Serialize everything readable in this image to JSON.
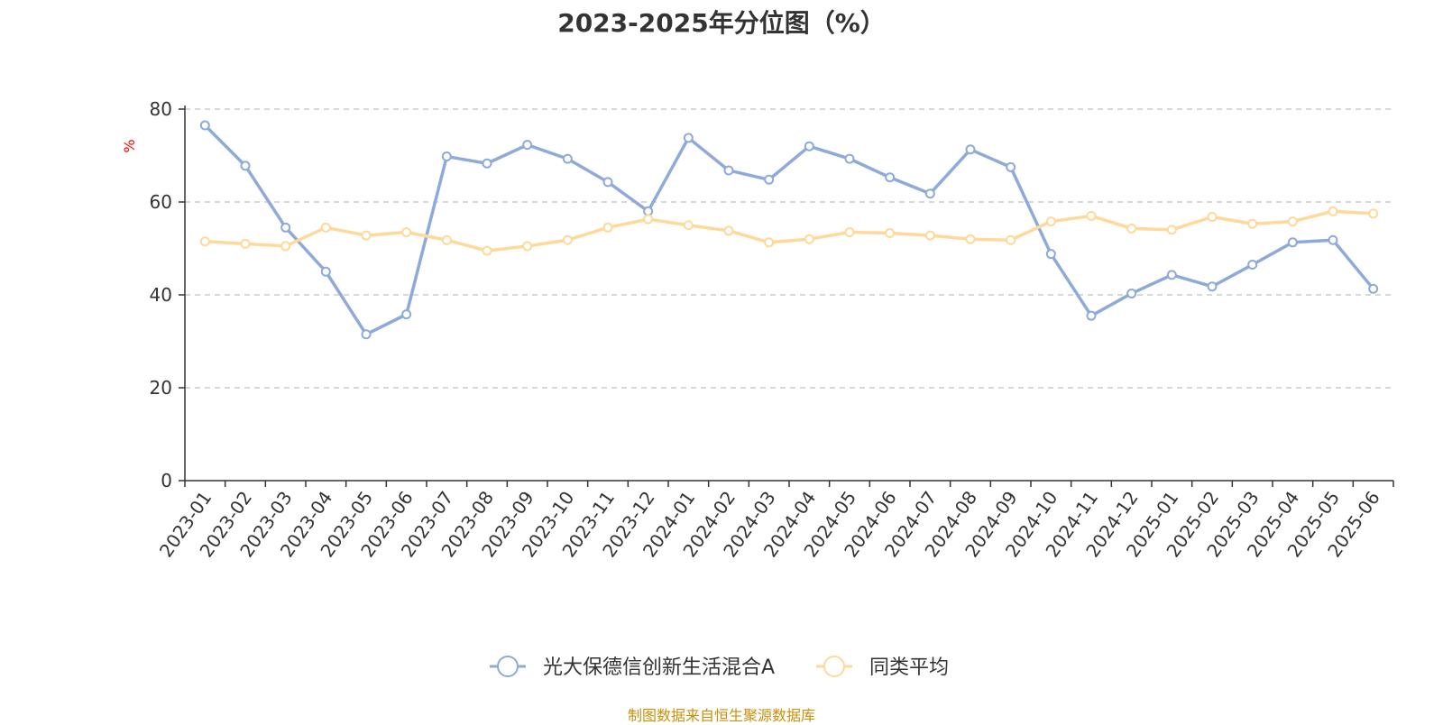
{
  "chart_data": {
    "type": "line",
    "title": "2023-2025年分位图（%）",
    "ylabel": "%",
    "ylim": [
      0,
      80
    ],
    "yticks": [
      0,
      20,
      40,
      60,
      80
    ],
    "grid": "horizontal dashed",
    "legend_position": "bottom",
    "x": [
      "2023-01",
      "2023-02",
      "2023-03",
      "2023-04",
      "2023-05",
      "2023-06",
      "2023-07",
      "2023-08",
      "2023-09",
      "2023-10",
      "2023-11",
      "2023-12",
      "2024-01",
      "2024-02",
      "2024-03",
      "2024-04",
      "2024-05",
      "2024-06",
      "2024-07",
      "2024-08",
      "2024-09",
      "2024-10",
      "2024-11",
      "2024-12",
      "2025-01",
      "2025-02",
      "2025-03",
      "2025-04",
      "2025-05",
      "2025-06"
    ],
    "series": [
      {
        "name": "光大保德信创新生活混合A",
        "color": "#8eaadb",
        "values": [
          76.5,
          67.8,
          54.5,
          45.0,
          31.5,
          35.8,
          69.8,
          68.3,
          72.3,
          69.3,
          64.3,
          58.0,
          73.8,
          66.8,
          64.8,
          72.0,
          69.3,
          65.3,
          61.8,
          71.3,
          67.5,
          48.8,
          35.5,
          40.3,
          44.3,
          41.8,
          46.5,
          51.3,
          51.8,
          41.3
        ]
      },
      {
        "name": "同类平均",
        "color": "#ffd99a",
        "values": [
          51.5,
          51.0,
          50.5,
          54.5,
          52.8,
          53.5,
          51.8,
          49.5,
          50.5,
          51.8,
          54.5,
          56.3,
          55.0,
          53.8,
          51.3,
          52.0,
          53.5,
          53.3,
          52.8,
          52.0,
          51.8,
          55.8,
          57.0,
          54.3,
          54.0,
          56.8,
          55.3,
          55.8,
          58.0,
          57.5
        ]
      }
    ]
  },
  "colors": {
    "axis": "#333333",
    "grid": "#cccccc",
    "ylabel": "#ff0000",
    "source": "#c8900a"
  },
  "source_note": "制图数据来自恒生聚源数据库"
}
